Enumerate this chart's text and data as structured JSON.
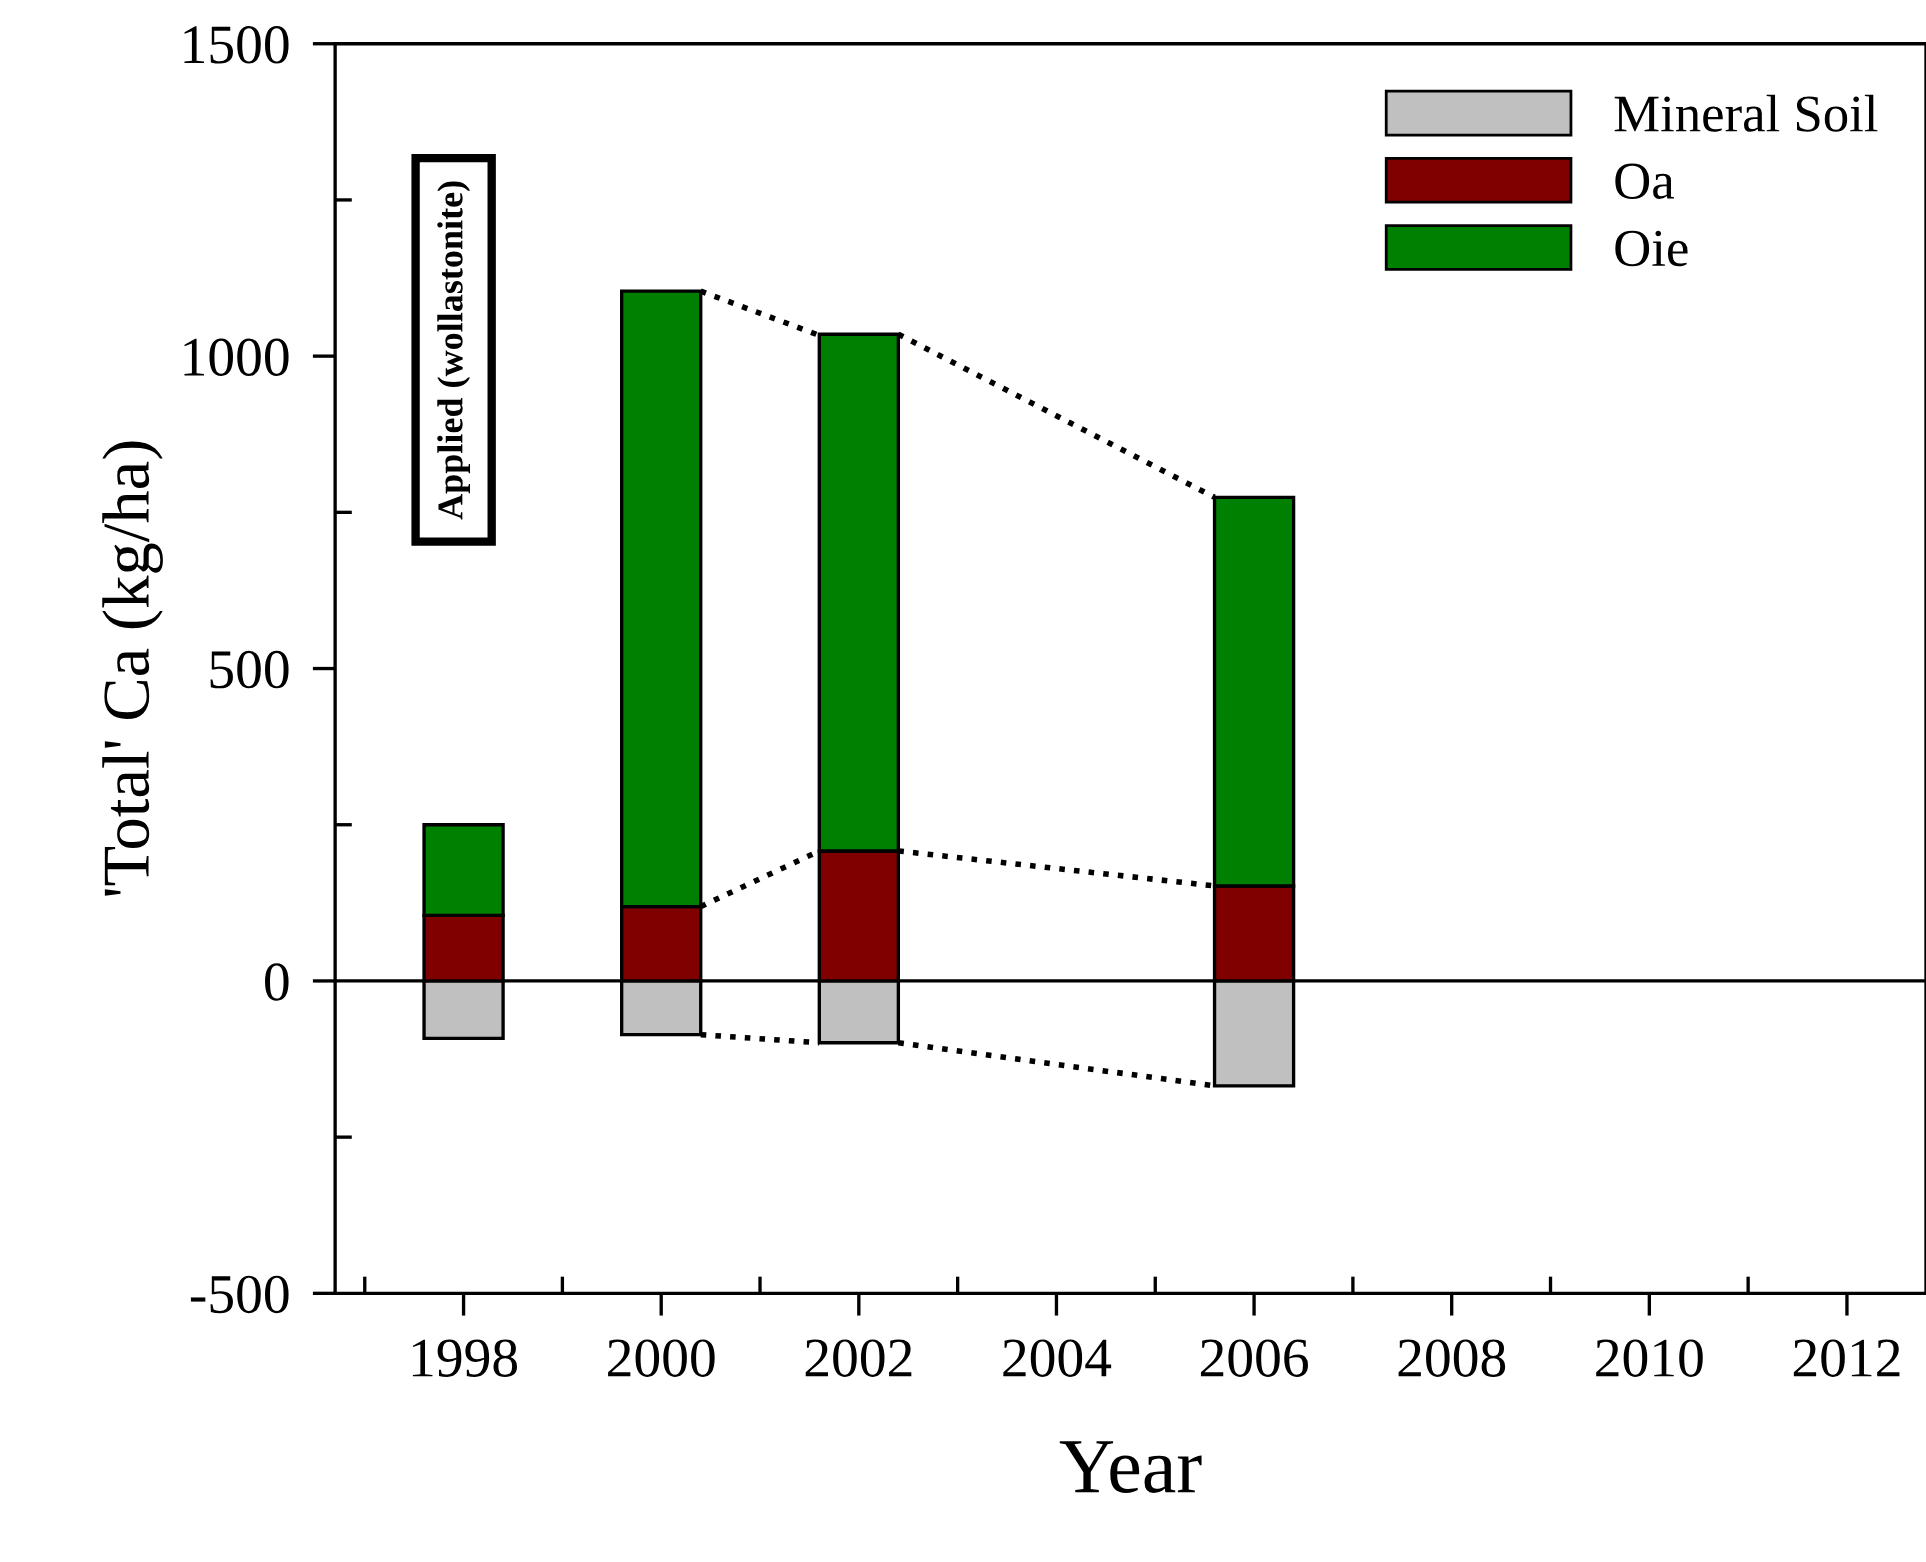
{
  "chart_data": {
    "type": "bar",
    "stacked": true,
    "xlabel": "Year",
    "ylabel": "'Total' Ca (kg/ha)",
    "x": [
      1998,
      2000,
      2002,
      2006
    ],
    "series": [
      {
        "name": "Mineral Soil",
        "color": "#c0c0c0",
        "values": [
          -92,
          -86,
          -99,
          -168
        ]
      },
      {
        "name": "Oa",
        "color": "#800000",
        "values": [
          105,
          119,
          208,
          152
        ]
      },
      {
        "name": "Oie",
        "color": "#008000",
        "values": [
          145,
          985,
          827,
          622
        ]
      },
      {
        "type": "line",
        "color": "#000000",
        "line_style": "dotted",
        "x": [
          2000.4,
          2001.57
        ],
        "values": [
          1104,
          1035
        ]
      },
      {
        "type": "line",
        "color": "#000000",
        "line_style": "dotted",
        "x": [
          2002.4,
          2005.6
        ],
        "values": [
          1035,
          774
        ]
      },
      {
        "type": "line",
        "color": "#000000",
        "line_style": "dotted",
        "x": [
          2000.4,
          2001.6
        ],
        "values": [
          119,
          208
        ]
      },
      {
        "type": "line",
        "color": "#000000",
        "line_style": "dotted",
        "x": [
          2002.4,
          2005.6
        ],
        "values": [
          208,
          152
        ]
      },
      {
        "type": "line",
        "color": "#000000",
        "line_style": "dotted",
        "x": [
          2000.4,
          2001.6
        ],
        "values": [
          -86,
          -99
        ]
      },
      {
        "type": "line",
        "color": "#000000",
        "line_style": "dotted",
        "x": [
          2002.4,
          2005.6
        ],
        "values": [
          -99,
          -168
        ]
      }
    ],
    "ref_lines": [
      {
        "axis": "y",
        "value": 0,
        "color": "#000000"
      }
    ],
    "annotations": [
      "Applied (wollastonite)"
    ],
    "xlim": [
      1996.7,
      2012.8
    ],
    "xticks": [
      1998,
      2000,
      2002,
      2004,
      2006,
      2008,
      2010,
      2012
    ],
    "ylim": [
      -500,
      1500
    ],
    "yticks": [
      -500,
      0,
      500,
      1000,
      1500
    ],
    "grid": false,
    "legend": "top right"
  }
}
